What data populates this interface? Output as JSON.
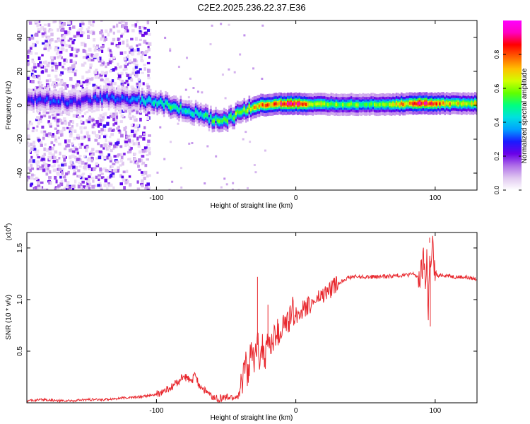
{
  "figure_title": "C2E2.2025.236.22.37.E36",
  "chart_data": [
    {
      "type": "heatmap",
      "title": "C2E2.2025.236.22.37.E36",
      "xlabel": "Height of straight line (km)",
      "ylabel": "Frequency (Hz)",
      "xlim": [
        -193,
        130
      ],
      "ylim": [
        -50,
        50
      ],
      "x_ticks": [
        -100,
        0,
        100
      ],
      "y_ticks": [
        -40,
        -20,
        0,
        20,
        40
      ],
      "grid": false,
      "colorbar": {
        "label": "Normalized spectral amplitude",
        "range": [
          0,
          1
        ],
        "ticks": [
          "0.0",
          "0.2",
          "0.4",
          "0.6",
          "0.8"
        ],
        "colors": [
          "#ffffff",
          "#e0c8f0",
          "#b070e8",
          "#6a00e8",
          "#1a1aff",
          "#00a0ff",
          "#00e0e0",
          "#00ff80",
          "#60ff00",
          "#d0ff00",
          "#ffc000",
          "#ff6000",
          "#ff0000",
          "#ff00c0",
          "#ff00ff"
        ]
      },
      "ridge": {
        "x": [
          -185,
          -170,
          -160,
          -150,
          -140,
          -120,
          -110,
          -100,
          -90,
          -80,
          -70,
          -60,
          -55,
          -50,
          -45,
          -40,
          -35,
          -30,
          -25,
          -20,
          -10,
          0,
          10,
          20,
          40,
          60,
          80,
          90,
          100,
          120,
          130
        ],
        "frequency": [
          3,
          3,
          2,
          3,
          4,
          4,
          3,
          2,
          0,
          -3,
          -5,
          -8,
          -9,
          -9,
          -7,
          -4,
          -2,
          -1,
          0,
          0,
          1,
          1,
          0.5,
          0.5,
          0.5,
          0.5,
          0.8,
          1,
          1,
          1,
          1
        ],
        "peak_amplitude": [
          0.3,
          0.35,
          0.3,
          0.3,
          0.35,
          0.35,
          0.45,
          0.5,
          0.55,
          0.5,
          0.5,
          0.55,
          0.6,
          0.55,
          0.6,
          0.65,
          0.7,
          0.75,
          0.8,
          0.85,
          0.9,
          0.95,
          0.75,
          0.65,
          0.6,
          0.6,
          0.8,
          0.95,
          0.85,
          0.7,
          0.75
        ]
      },
      "noise_region_km": [
        -193,
        -105
      ]
    },
    {
      "type": "line",
      "xlabel": "Height of straight line (km)",
      "ylabel": "SNR (10 * v/v)",
      "y_multiplier_label": "(x10",
      "y_multiplier_exponent": "4",
      "y_multiplier_close": ")",
      "xlim": [
        -193,
        130
      ],
      "ylim": [
        0,
        1.65
      ],
      "x_ticks": [
        -100,
        0,
        100
      ],
      "y_ticks": [
        0.5,
        1.0,
        1.5
      ],
      "y_tick_labels": [
        "0.5",
        "1.0",
        "1.5"
      ],
      "grid": false,
      "series": [
        {
          "name": "SNR",
          "color": "#e8282e",
          "x": [
            -193,
            -180,
            -170,
            -160,
            -150,
            -140,
            -130,
            -120,
            -110,
            -100,
            -90,
            -85,
            -80,
            -75,
            -72,
            -70,
            -65,
            -60,
            -55,
            -50,
            -45,
            -42,
            -40,
            -38,
            -36,
            -34,
            -32,
            -30,
            -28,
            -26,
            -24,
            -22,
            -20,
            -18,
            -16,
            -14,
            -12,
            -10,
            -8,
            -6,
            -4,
            -2,
            0,
            5,
            10,
            15,
            20,
            25,
            30,
            35,
            40,
            50,
            60,
            70,
            80,
            85,
            88,
            90,
            92,
            93,
            94,
            95,
            96,
            97,
            98,
            99,
            100,
            102,
            105,
            110,
            115,
            120,
            125,
            130
          ],
          "y": [
            0.02,
            0.03,
            0.02,
            0.02,
            0.03,
            0.03,
            0.04,
            0.05,
            0.06,
            0.08,
            0.14,
            0.2,
            0.26,
            0.2,
            0.28,
            0.18,
            0.12,
            0.05,
            0.04,
            0.05,
            0.05,
            0.06,
            0.1,
            0.25,
            0.45,
            0.2,
            0.55,
            0.35,
            0.6,
            0.45,
            0.55,
            0.45,
            0.6,
            0.55,
            0.6,
            0.7,
            0.65,
            0.72,
            0.78,
            0.75,
            0.82,
            0.9,
            0.85,
            0.9,
            0.95,
            1.0,
            1.05,
            1.1,
            1.15,
            1.2,
            1.22,
            1.22,
            1.22,
            1.23,
            1.24,
            1.25,
            1.2,
            1.25,
            1.4,
            1.1,
            1.5,
            0.74,
            1.55,
            1.2,
            1.63,
            1.25,
            1.28,
            1.22,
            1.24,
            1.23,
            1.22,
            1.22,
            1.21,
            1.2
          ],
          "spikes": [
            {
              "x": -27.5,
              "y": 1.22
            },
            {
              "x": -20,
              "y": 0.95
            },
            {
              "x": 19,
              "y": 1.05
            },
            {
              "x": 96,
              "y": 1.6
            },
            {
              "x": 96.5,
              "y": 0.74
            }
          ]
        }
      ]
    }
  ]
}
